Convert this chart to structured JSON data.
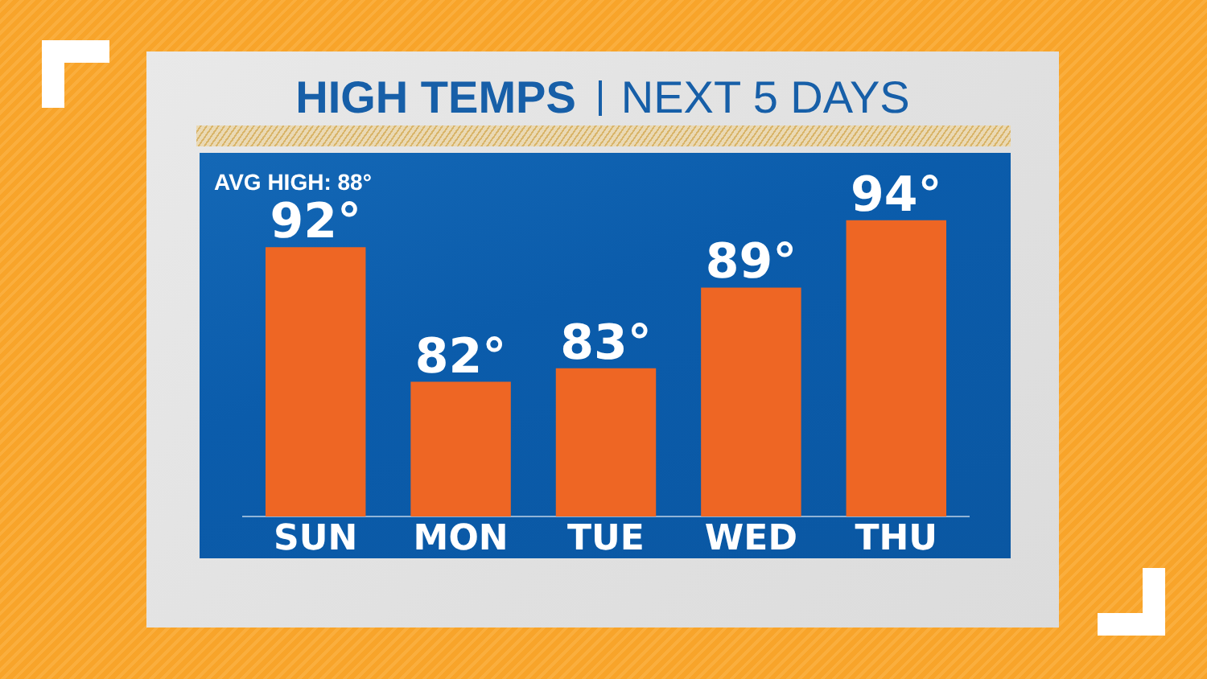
{
  "chart_data": {
    "type": "bar",
    "title": "HIGH TEMPS",
    "subtitle": "NEXT 5 DAYS",
    "categories": [
      "SUN",
      "MON",
      "TUE",
      "WED",
      "THU"
    ],
    "values": [
      92,
      82,
      83,
      89,
      94
    ],
    "value_labels": [
      "92°",
      "82°",
      "83°",
      "89°",
      "94°"
    ],
    "color": "#ee6624",
    "ylim": [
      72,
      99
    ],
    "tick_labels": "x",
    "annotations": [
      "AVG HIGH: 88°"
    ]
  }
}
